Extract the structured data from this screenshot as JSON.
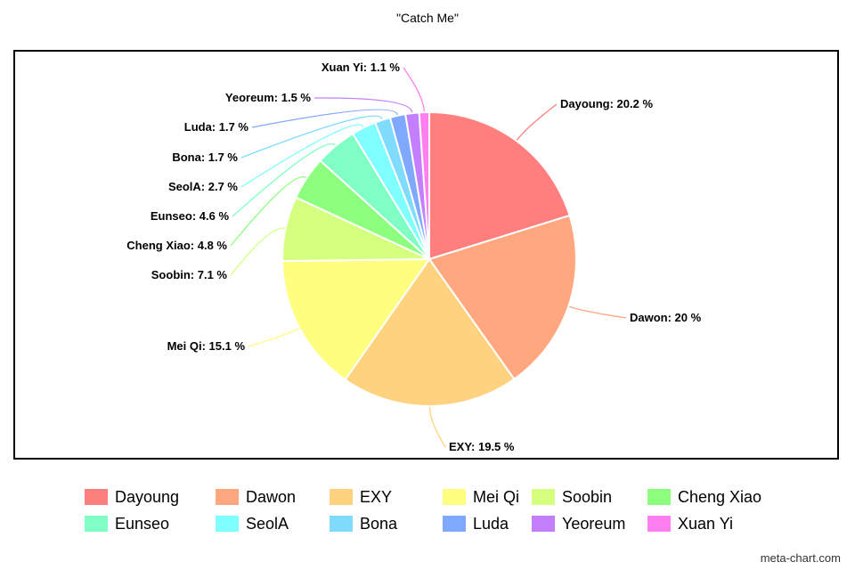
{
  "chart_data": {
    "type": "pie",
    "title": "\"Catch Me\"",
    "legend_position": "bottom",
    "slices": [
      {
        "name": "Dayoung",
        "value": 20.2,
        "label": "Dayoung: 20.2 %",
        "color": "#FF7F7F"
      },
      {
        "name": "Dawon",
        "value": 20,
        "label": "Dawon: 20 %",
        "color": "#FFA87F"
      },
      {
        "name": "EXY",
        "value": 19.5,
        "label": "EXY: 19.5 %",
        "color": "#FFD27F"
      },
      {
        "name": "Mei Qi",
        "value": 15.1,
        "label": "Mei Qi: 15.1 %",
        "color": "#FFFF7F"
      },
      {
        "name": "Soobin",
        "value": 7.1,
        "label": "Soobin: 7.1 %",
        "color": "#D4FF7F"
      },
      {
        "name": "Cheng Xiao",
        "value": 4.8,
        "label": "Cheng Xiao: 4.8 %",
        "color": "#8CFF7F"
      },
      {
        "name": "Eunseo",
        "value": 4.6,
        "label": "Eunseo: 4.6 %",
        "color": "#7FFFC3"
      },
      {
        "name": "SeolA",
        "value": 2.7,
        "label": "SeolA: 2.7 %",
        "color": "#7FFFFF"
      },
      {
        "name": "Bona",
        "value": 1.7,
        "label": "Bona: 1.7 %",
        "color": "#7FDCFF"
      },
      {
        "name": "Luda",
        "value": 1.7,
        "label": "Luda: 1.7 %",
        "color": "#7FA8FF"
      },
      {
        "name": "Yeoreum",
        "value": 1.5,
        "label": "Yeoreum: 1.5 %",
        "color": "#C37FFF"
      },
      {
        "name": "Xuan Yi",
        "value": 1.1,
        "label": "Xuan Yi: 1.1 %",
        "color": "#FF7FF0"
      }
    ]
  },
  "footer": "meta-chart.com"
}
